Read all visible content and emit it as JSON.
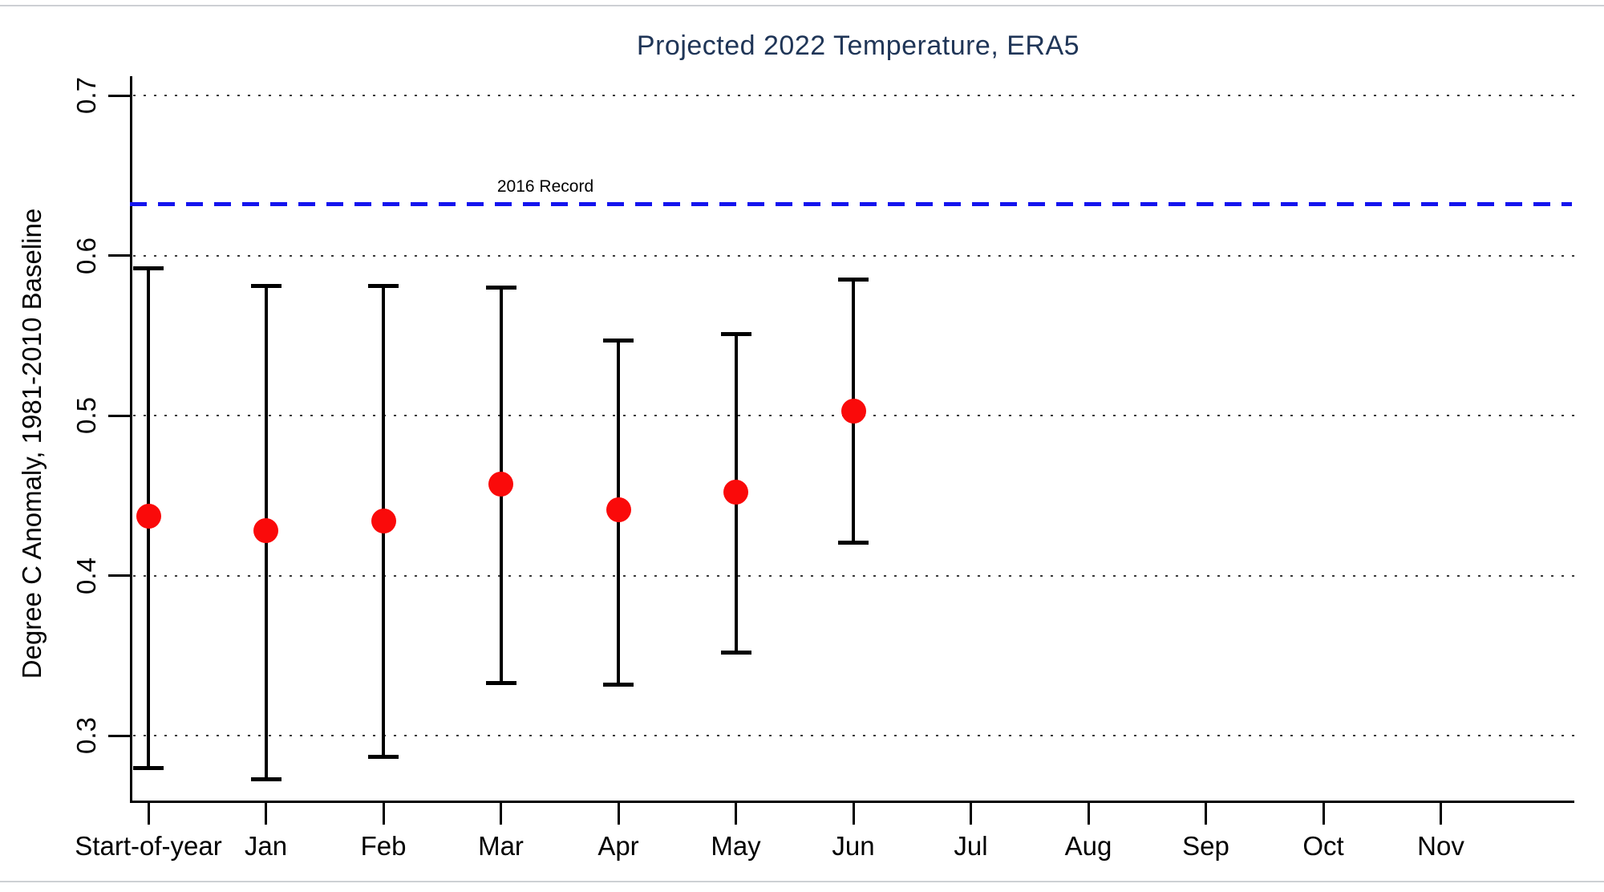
{
  "colors": {
    "title": "#1f3557",
    "point": "#fa0a0a",
    "reference_line": "#1414ee",
    "axis": "#000000",
    "gridline": "#3a3a3a"
  },
  "chart_data": {
    "type": "scatter",
    "title": "Projected 2022 Temperature, ERA5",
    "xlabel": "",
    "ylabel": "Degree C Anomaly, 1981-2010 Baseline",
    "categories": [
      "Start-of-year",
      "Jan",
      "Feb",
      "Mar",
      "Apr",
      "May",
      "Jun",
      "Jul",
      "Aug",
      "Sep",
      "Oct",
      "Nov"
    ],
    "yticks": [
      0.3,
      0.4,
      0.5,
      0.6,
      0.7
    ],
    "ylim": [
      0.26,
      0.712
    ],
    "grid": "horizontal dotted",
    "legend": "none",
    "series": [
      {
        "name": "Projected 2022 anomaly with uncertainty interval",
        "marker": "filled-circle",
        "points": [
          {
            "category": "Start-of-year",
            "value": 0.437,
            "lo": 0.28,
            "hi": 0.592
          },
          {
            "category": "Jan",
            "value": 0.428,
            "lo": 0.273,
            "hi": 0.581
          },
          {
            "category": "Feb",
            "value": 0.434,
            "lo": 0.287,
            "hi": 0.581
          },
          {
            "category": "Mar",
            "value": 0.457,
            "lo": 0.333,
            "hi": 0.58
          },
          {
            "category": "Apr",
            "value": 0.441,
            "lo": 0.332,
            "hi": 0.547
          },
          {
            "category": "May",
            "value": 0.452,
            "lo": 0.352,
            "hi": 0.551
          },
          {
            "category": "Jun",
            "value": 0.503,
            "lo": 0.421,
            "hi": 0.585
          }
        ]
      }
    ],
    "reference_line": {
      "label": "2016 Record",
      "value": 0.632,
      "style": "dashed"
    }
  }
}
